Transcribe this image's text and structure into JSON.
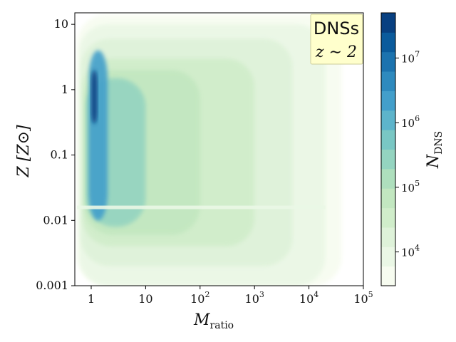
{
  "chart_data": {
    "type": "heatmap",
    "title": "",
    "annotation": {
      "line1": "DNSs",
      "line2": "z ∼ 2"
    },
    "xlabel": {
      "main": "M",
      "sub": "ratio"
    },
    "ylabel": "Z [Z⊙]",
    "x_scale": "log",
    "y_scale": "log",
    "xlim": [
      0.5,
      100000
    ],
    "ylim": [
      0.001,
      15
    ],
    "x_ticks": [
      {
        "value": 1,
        "label": "1"
      },
      {
        "value": 10,
        "label": "10"
      },
      {
        "value": 100,
        "label": "10",
        "exp": "2"
      },
      {
        "value": 1000,
        "label": "10",
        "exp": "3"
      },
      {
        "value": 10000,
        "label": "10",
        "exp": "4"
      },
      {
        "value": 100000,
        "label": "10",
        "exp": "5"
      }
    ],
    "y_ticks": [
      {
        "value": 10,
        "label": "10"
      },
      {
        "value": 1,
        "label": "1"
      },
      {
        "value": 0.1,
        "label": "0.1"
      },
      {
        "value": 0.01,
        "label": "0.01"
      },
      {
        "value": 0.001,
        "label": "0.001"
      }
    ],
    "colorbar": {
      "label": {
        "main": "N",
        "sub": "DNS"
      },
      "scale": "log",
      "range": [
        3000,
        50000000
      ],
      "ticks": [
        {
          "value": 10000,
          "label": "10",
          "exp": "4"
        },
        {
          "value": 100000,
          "label": "10",
          "exp": "5"
        },
        {
          "value": 1000000,
          "label": "10",
          "exp": "6"
        },
        {
          "value": 10000000,
          "label": "10",
          "exp": "7"
        }
      ],
      "colors": [
        "#f7fcf0",
        "#eaf7e5",
        "#def2d9",
        "#d0edca",
        "#c2e7c0",
        "#aedfbd",
        "#94d4c0",
        "#79c7c4",
        "#5db4cb",
        "#439fcb",
        "#2e8abe",
        "#1c73af",
        "#0b5b9c",
        "#084081"
      ]
    },
    "density_regions": [
      {
        "level": 0,
        "x_range": [
          0.55,
          40000
        ],
        "y_range": [
          0.001,
          14
        ]
      },
      {
        "level": 1,
        "x_range": [
          0.6,
          20000
        ],
        "y_range": [
          0.001,
          10
        ]
      },
      {
        "level": 2,
        "x_range": [
          0.65,
          5000
        ],
        "y_range": [
          0.002,
          6
        ]
      },
      {
        "level": 3,
        "x_range": [
          0.7,
          1000
        ],
        "y_range": [
          0.004,
          3
        ]
      },
      {
        "level": 4,
        "x_range": [
          0.75,
          100
        ],
        "y_range": [
          0.006,
          2
        ]
      },
      {
        "level": 6,
        "x_range": [
          0.8,
          10
        ],
        "y_range": [
          0.008,
          1.5
        ]
      },
      {
        "level": 9,
        "x_range": [
          0.9,
          2
        ],
        "y_range": [
          0.01,
          4
        ]
      },
      {
        "level": 13,
        "x_range": [
          1.0,
          1.3
        ],
        "y_range": [
          0.3,
          2
        ]
      }
    ]
  }
}
